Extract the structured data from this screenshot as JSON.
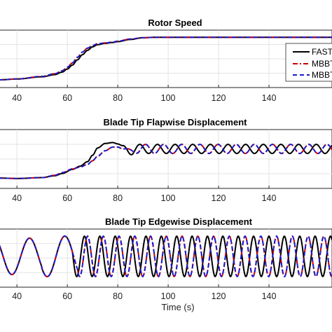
{
  "chart_data": [
    {
      "type": "line",
      "title": "Rotor Speed",
      "xlabel": "",
      "xticks": [
        40,
        60,
        80,
        100,
        120,
        140
      ],
      "xlim": [
        33,
        165
      ],
      "grid": true,
      "legend": {
        "position": "right",
        "entries": [
          "FAST(",
          "MBBT",
          "MBBT"
        ]
      },
      "series": [
        {
          "name": "FAST(",
          "color": "#000000",
          "dash": "solid",
          "x": [
            33,
            40,
            50,
            55,
            58,
            60,
            62,
            64,
            66,
            68,
            70,
            72,
            75,
            78,
            80,
            85,
            90,
            95,
            100,
            120,
            140,
            165
          ],
          "y": [
            0.0,
            0.02,
            0.07,
            0.12,
            0.18,
            0.25,
            0.34,
            0.46,
            0.58,
            0.68,
            0.76,
            0.81,
            0.84,
            0.86,
            0.88,
            0.93,
            0.97,
            0.98,
            0.98,
            0.98,
            0.98,
            0.98
          ]
        },
        {
          "name": "MBBT",
          "color": "#cc0000",
          "dash": "dashdot",
          "x": [
            33,
            40,
            50,
            55,
            58,
            60,
            62,
            64,
            66,
            68,
            70,
            72,
            75,
            78,
            80,
            85,
            90,
            95,
            100,
            120,
            140,
            165
          ],
          "y": [
            0.0,
            0.02,
            0.08,
            0.14,
            0.21,
            0.29,
            0.39,
            0.52,
            0.64,
            0.73,
            0.79,
            0.83,
            0.85,
            0.87,
            0.89,
            0.94,
            0.97,
            0.98,
            0.98,
            0.98,
            0.98,
            0.98
          ]
        },
        {
          "name": "MBBT",
          "color": "#1a1acc",
          "dash": "dashed",
          "x": [
            33,
            40,
            50,
            55,
            58,
            60,
            62,
            64,
            66,
            68,
            70,
            72,
            75,
            78,
            80,
            85,
            90,
            95,
            100,
            120,
            140,
            165
          ],
          "y": [
            0.0,
            0.02,
            0.08,
            0.14,
            0.21,
            0.29,
            0.39,
            0.52,
            0.64,
            0.73,
            0.79,
            0.83,
            0.85,
            0.87,
            0.89,
            0.94,
            0.97,
            0.98,
            0.98,
            0.98,
            0.98,
            0.98
          ]
        }
      ]
    },
    {
      "type": "line",
      "title": "Blade Tip Flapwise Displacement",
      "xlabel": "",
      "xticks": [
        40,
        60,
        80,
        100,
        120,
        140
      ],
      "xlim": [
        33,
        165
      ],
      "grid": true,
      "series": [
        {
          "name": "FAST(",
          "color": "#000000",
          "dash": "solid",
          "x": [
            33,
            40,
            50,
            55,
            58,
            62,
            65,
            68,
            70,
            72,
            75,
            78,
            80,
            82,
            85,
            88,
            165
          ],
          "y": [
            0.12,
            0.11,
            0.13,
            0.17,
            0.22,
            0.31,
            0.38,
            0.48,
            0.62,
            0.78,
            0.88,
            0.9,
            0.87,
            0.8,
            0.72,
            0.76,
            0.76
          ],
          "oscillation": {
            "start": 80,
            "period": 7.0,
            "amplitude": 0.1
          }
        },
        {
          "name": "MBBT",
          "color": "#cc0000",
          "dash": "dashdot",
          "x": [
            33,
            40,
            50,
            55,
            58,
            62,
            65,
            68,
            70,
            72,
            75,
            78,
            80,
            82,
            85,
            88,
            165
          ],
          "y": [
            0.12,
            0.11,
            0.13,
            0.18,
            0.24,
            0.32,
            0.36,
            0.42,
            0.5,
            0.6,
            0.72,
            0.8,
            0.8,
            0.76,
            0.72,
            0.76,
            0.76
          ],
          "oscillation": {
            "start": 82,
            "period": 7.2,
            "amplitude": 0.1
          }
        },
        {
          "name": "MBBT",
          "color": "#1a1acc",
          "dash": "dashed",
          "x": [
            33,
            40,
            50,
            55,
            58,
            62,
            65,
            68,
            70,
            72,
            75,
            78,
            80,
            82,
            85,
            88,
            165
          ],
          "y": [
            0.12,
            0.11,
            0.13,
            0.18,
            0.24,
            0.32,
            0.36,
            0.42,
            0.5,
            0.6,
            0.72,
            0.8,
            0.8,
            0.76,
            0.72,
            0.76,
            0.76
          ],
          "oscillation": {
            "start": 82,
            "period": 7.2,
            "amplitude": 0.1
          }
        }
      ]
    },
    {
      "type": "line",
      "title": "Blade Tip Edgewise Displacement",
      "xlabel": "Time (s)",
      "xticks": [
        40,
        60,
        80,
        100,
        120,
        140
      ],
      "xlim": [
        33,
        165
      ],
      "grid": true,
      "series": [
        {
          "name": "FAST(",
          "color": "#000000",
          "dash": "solid",
          "oscillation": {
            "phase0_x": 45,
            "early_period": 14,
            "late_period": 6.1,
            "transition_x": 62,
            "amplitude": 0.85
          }
        },
        {
          "name": "MBBT",
          "color": "#cc0000",
          "dash": "dashdot",
          "oscillation": {
            "phase0_x": 45,
            "early_period": 14,
            "late_period": 6.25,
            "transition_x": 64,
            "amplitude": 0.85
          }
        },
        {
          "name": "MBBT",
          "color": "#1a1acc",
          "dash": "dashed",
          "oscillation": {
            "phase0_x": 45,
            "early_period": 14,
            "late_period": 6.25,
            "transition_x": 64,
            "amplitude": 0.85
          }
        }
      ]
    }
  ]
}
